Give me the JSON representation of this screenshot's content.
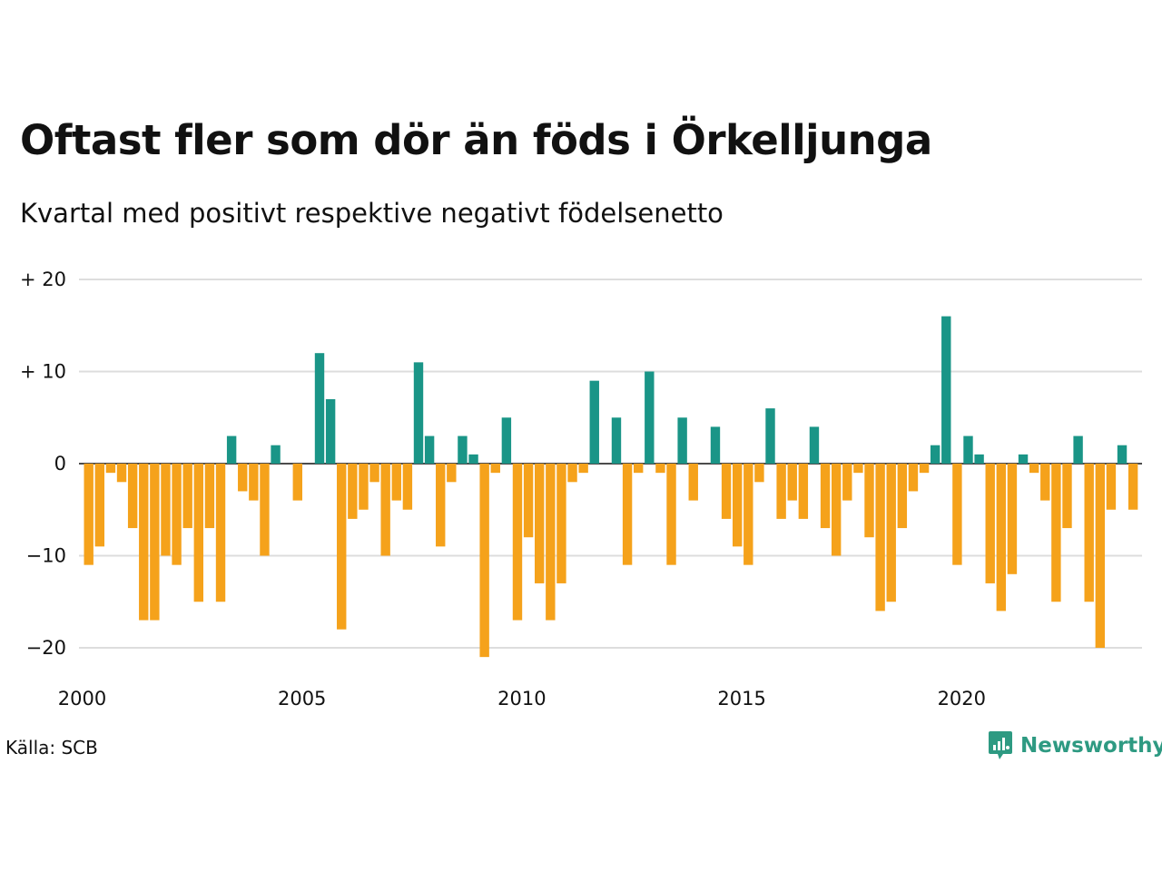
{
  "title": "Oftast fler som dör än föds i Örkelljunga",
  "subtitle": "Kvartal med positivt respektive negativt födelsenetto",
  "source": "Källa: SCB",
  "brand": "Newsworthy",
  "colors": {
    "positive": "#1a9587",
    "negative": "#f5a21b",
    "grid": "#dddddd",
    "axis": "#111111",
    "brand": "#2e9a82"
  },
  "chart_data": {
    "type": "bar",
    "x_unit": "quarter",
    "x_start": "2000 Q1",
    "y_tick_values": [
      20,
      10,
      0,
      -10,
      -20
    ],
    "y_tick_labels": [
      "+ 20",
      "+ 10",
      "0",
      "−10",
      "−20"
    ],
    "x_tick_labels": [
      "2000",
      "2005",
      "2010",
      "2015",
      "2020"
    ],
    "ylim": [
      -21,
      20
    ],
    "grid": true,
    "values": [
      -11,
      -9,
      -1,
      -2,
      -7,
      -17,
      -17,
      -10,
      -11,
      -7,
      -15,
      -7,
      -15,
      3,
      -3,
      -4,
      -10,
      2,
      0,
      -4,
      0,
      12,
      7,
      -18,
      -6,
      -5,
      -2,
      -10,
      -4,
      -5,
      11,
      3,
      -9,
      -2,
      3,
      1,
      -21,
      -1,
      5,
      -17,
      -8,
      -13,
      -17,
      -13,
      -2,
      -1,
      9,
      0,
      5,
      -11,
      -1,
      10,
      -1,
      -11,
      5,
      -4,
      0,
      4,
      -6,
      -9,
      -11,
      -2,
      6,
      -6,
      -4,
      -6,
      4,
      -7,
      -10,
      -4,
      -1,
      -8,
      -16,
      -15,
      -7,
      -3,
      -1,
      2,
      16,
      -11,
      3,
      1,
      -13,
      -16,
      -12,
      1,
      -1,
      -4,
      -15,
      -7,
      3,
      -15,
      -20,
      -5,
      2,
      -5
    ]
  }
}
